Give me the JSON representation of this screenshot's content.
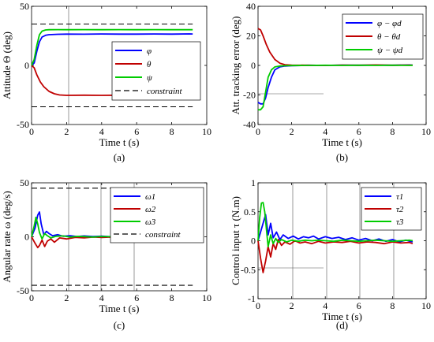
{
  "figure": {
    "panels": [
      {
        "caption": "(a)",
        "ylabel": "Attitude Θ (deg)",
        "xlabel": "Time t (s)"
      },
      {
        "caption": "(b)",
        "ylabel": "Att. tracking error (deg)",
        "xlabel": "Time t (s)"
      },
      {
        "caption": "(c)",
        "ylabel": "Angular rate ω (deg/s)",
        "xlabel": "Time t (s)"
      },
      {
        "caption": "(d)",
        "ylabel": "Control input τ (N.m)",
        "xlabel": "Time t (s)"
      }
    ]
  },
  "chart_data": [
    {
      "type": "line",
      "caption": "(a)",
      "xlabel": "Time t (s)",
      "ylabel": "Attitude Θ (deg)",
      "xlim": [
        0,
        10
      ],
      "ylim": [
        -50,
        50
      ],
      "xticks": [
        "0",
        "2",
        "4",
        "6",
        "8",
        "10"
      ],
      "yticks": [
        "-50",
        "0",
        "50"
      ],
      "legend_position": "center-right",
      "series": [
        {
          "name": "φ",
          "color": "#0000ff",
          "x": [
            0,
            0.15,
            0.3,
            0.45,
            0.6,
            0.8,
            1.0,
            1.5,
            2,
            3,
            4,
            5,
            6,
            7,
            8,
            9,
            9.2
          ],
          "y": [
            0,
            2,
            12,
            20,
            24,
            25.5,
            26,
            26.3,
            26.5,
            26.4,
            26.6,
            26.5,
            26.5,
            26.6,
            26.5,
            26.7,
            26.6
          ]
        },
        {
          "name": "θ",
          "color": "#c00000",
          "x": [
            0,
            0.15,
            0.3,
            0.5,
            0.7,
            1.0,
            1.3,
            1.6,
            2,
            3,
            4,
            5,
            6,
            7,
            8,
            9,
            9.2
          ],
          "y": [
            0,
            -2,
            -8,
            -14,
            -18,
            -22,
            -24,
            -25,
            -25.3,
            -25.2,
            -25.3,
            -25.2,
            -25.1,
            -25.2,
            -25.0,
            -25.1,
            -24.8
          ]
        },
        {
          "name": "ψ",
          "color": "#00cc00",
          "x": [
            0,
            0.15,
            0.3,
            0.45,
            0.6,
            0.8,
            1.0,
            1.5,
            2,
            3,
            4,
            5,
            6,
            7,
            8,
            9,
            9.2
          ],
          "y": [
            0,
            5,
            17,
            26,
            29,
            30,
            30.2,
            30.3,
            30.2,
            30.3,
            30.2,
            30.3,
            30.2,
            30.3,
            30.2,
            30.3,
            30.2
          ]
        },
        {
          "name": "constraint",
          "color": "#000000",
          "dash": true,
          "x": [
            0,
            9.2
          ],
          "y": [
            35,
            35
          ]
        },
        {
          "name": "",
          "color": "#000000",
          "dash": true,
          "x": [
            0,
            9.2
          ],
          "y": [
            -35,
            -35
          ]
        }
      ]
    },
    {
      "type": "line",
      "caption": "(b)",
      "xlabel": "Time t (s)",
      "ylabel": "Att. tracking error (deg)",
      "xlim": [
        0,
        10
      ],
      "ylim": [
        -40,
        40
      ],
      "xticks": [
        "0",
        "2",
        "4",
        "6",
        "8",
        "10"
      ],
      "yticks": [
        "-40",
        "-20",
        "0",
        "20",
        "40"
      ],
      "legend_position": "top-right",
      "series": [
        {
          "name": "φ − φd",
          "color": "#0000ff",
          "x": [
            0,
            0.15,
            0.3,
            0.45,
            0.6,
            0.8,
            1.0,
            1.3,
            1.6,
            2,
            3,
            4,
            5,
            6,
            7,
            8,
            9,
            9.2
          ],
          "y": [
            -25,
            -26,
            -26,
            -22,
            -15,
            -8,
            -3,
            -1,
            -0.4,
            -0.2,
            0.1,
            0,
            0.2,
            0.1,
            0.2,
            0.1,
            0.3,
            0.2
          ]
        },
        {
          "name": "θ − θd",
          "color": "#c00000",
          "x": [
            0,
            0.15,
            0.3,
            0.5,
            0.7,
            1.0,
            1.3,
            1.6,
            2,
            3,
            4,
            5,
            6,
            7,
            8,
            9,
            9.2
          ],
          "y": [
            25,
            24,
            20,
            14,
            9,
            4,
            1.5,
            0.5,
            0.2,
            0.1,
            0,
            0.2,
            0.1,
            0.3,
            0.1,
            0.2,
            0.1
          ]
        },
        {
          "name": "ψ − ψd",
          "color": "#00cc00",
          "x": [
            0,
            0.15,
            0.3,
            0.45,
            0.6,
            0.8,
            1.0,
            1.3,
            1.6,
            2,
            3,
            4,
            5,
            6,
            7,
            8,
            9,
            9.2
          ],
          "y": [
            -30,
            -30,
            -28,
            -18,
            -8,
            -3,
            -1,
            -0.4,
            -0.2,
            -0.1,
            0,
            0.1,
            0,
            0.1,
            0,
            0.1,
            0,
            0.1
          ]
        }
      ]
    },
    {
      "type": "line",
      "caption": "(c)",
      "xlabel": "Time t (s)",
      "ylabel": "Angular rate ω (deg/s)",
      "xlim": [
        0,
        10
      ],
      "ylim": [
        -50,
        50
      ],
      "xticks": [
        "0",
        "2",
        "4",
        "6",
        "8",
        "10"
      ],
      "yticks": [
        "-50",
        "0",
        "50"
      ],
      "legend_position": "top-right",
      "series": [
        {
          "name": "ω1",
          "color": "#0000ff",
          "x": [
            0,
            0.2,
            0.35,
            0.45,
            0.55,
            0.7,
            0.85,
            1.0,
            1.2,
            1.5,
            1.8,
            2.2,
            2.6,
            3,
            3.5,
            4,
            4.5,
            5,
            5.5,
            6,
            6.5,
            7,
            7.5,
            8,
            8.5,
            9,
            9.2
          ],
          "y": [
            0,
            8,
            20,
            23,
            12,
            2,
            5,
            3,
            1,
            2,
            0.5,
            1,
            0.3,
            0.8,
            0.2,
            0.6,
            0.1,
            0.5,
            0.2,
            0.4,
            0.1,
            0.3,
            0.2,
            0.3,
            0.1,
            0.3,
            0.2
          ]
        },
        {
          "name": "ω2",
          "color": "#c00000",
          "x": [
            0,
            0.2,
            0.35,
            0.45,
            0.6,
            0.75,
            0.9,
            1.1,
            1.3,
            1.6,
            2.0,
            2.5,
            3,
            3.5,
            4,
            4.5,
            5,
            5.5,
            6,
            6.5,
            7,
            7.5,
            8,
            8.5,
            9,
            9.2
          ],
          "y": [
            0,
            -6,
            -10,
            -8,
            -3,
            -9,
            -4,
            -2,
            -5,
            -1,
            -2,
            -0.5,
            -1,
            -0.3,
            -0.6,
            -0.2,
            -0.5,
            -0.3,
            -0.4,
            -0.2,
            -0.3,
            -0.1,
            -0.3,
            -0.2,
            -0.3,
            -0.1
          ]
        },
        {
          "name": "ω3",
          "color": "#00cc00",
          "x": [
            0,
            0.15,
            0.25,
            0.35,
            0.45,
            0.6,
            0.75,
            0.9,
            1.1,
            1.4,
            1.8,
            2.2,
            2.6,
            3,
            3.5,
            4,
            4.5,
            5,
            5.5,
            6,
            6.5,
            7,
            7.5,
            8,
            8.5,
            9,
            9.2
          ],
          "y": [
            0,
            10,
            18,
            12,
            4,
            -2,
            3,
            1,
            -1,
            0.5,
            0.8,
            -0.3,
            0.4,
            0.2,
            -0.2,
            0.3,
            0.1,
            -0.1,
            0.2,
            0.1,
            -0.1,
            0.1,
            0,
            0.1,
            0,
            0.1,
            0
          ]
        },
        {
          "name": "constraint",
          "color": "#000000",
          "dash": true,
          "x": [
            0,
            9.2
          ],
          "y": [
            45,
            45
          ]
        },
        {
          "name": "",
          "color": "#000000",
          "dash": true,
          "x": [
            0,
            9.2
          ],
          "y": [
            -45,
            -45
          ]
        }
      ]
    },
    {
      "type": "line",
      "caption": "(d)",
      "xlabel": "Time t (s)",
      "ylabel": "Control input τ (N.m)",
      "xlim": [
        0,
        10
      ],
      "ylim": [
        -1,
        1
      ],
      "xticks": [
        "0",
        "2",
        "4",
        "6",
        "8",
        "10"
      ],
      "yticks": [
        "-1",
        "-0.5",
        "0",
        "0.5",
        "1"
      ],
      "legend_position": "top-right",
      "series": [
        {
          "name": "τ1",
          "color": "#0000ff",
          "x": [
            0,
            0.15,
            0.3,
            0.45,
            0.6,
            0.75,
            0.9,
            1.1,
            1.3,
            1.5,
            1.8,
            2.1,
            2.4,
            2.7,
            3,
            3.3,
            3.6,
            4,
            4.4,
            4.8,
            5.2,
            5.6,
            6,
            6.4,
            6.8,
            7.2,
            7.6,
            8,
            8.4,
            8.8,
            9.2
          ],
          "y": [
            0,
            0.15,
            0.3,
            0.45,
            0.1,
            0.3,
            0.05,
            0.15,
            0.02,
            0.1,
            0.04,
            0.08,
            0.03,
            0.07,
            0.05,
            0.08,
            0.03,
            0.07,
            0.04,
            0.06,
            0.02,
            0.05,
            0.01,
            0.04,
            0.0,
            0.03,
            -0.01,
            0.02,
            -0.02,
            0.01,
            -0.02
          ]
        },
        {
          "name": "τ2",
          "color": "#c00000",
          "x": [
            0,
            0.15,
            0.3,
            0.45,
            0.6,
            0.75,
            0.9,
            1.05,
            1.2,
            1.4,
            1.6,
            1.9,
            2.2,
            2.5,
            2.8,
            3.2,
            3.6,
            4,
            4.5,
            5,
            5.5,
            6,
            6.5,
            7,
            7.5,
            8,
            8.5,
            9,
            9.2
          ],
          "y": [
            0,
            -0.3,
            -0.55,
            -0.35,
            -0.1,
            -0.28,
            -0.05,
            -0.15,
            0.02,
            -0.08,
            -0.02,
            -0.06,
            0.0,
            -0.04,
            -0.02,
            -0.05,
            -0.01,
            -0.04,
            -0.02,
            -0.03,
            -0.01,
            -0.04,
            -0.02,
            -0.03,
            -0.05,
            -0.02,
            -0.04,
            -0.03,
            -0.05
          ]
        },
        {
          "name": "τ3",
          "color": "#00cc00",
          "x": [
            0,
            0.1,
            0.2,
            0.3,
            0.4,
            0.5,
            0.6,
            0.75,
            0.9,
            1.05,
            1.2,
            1.4,
            1.7,
            2.0,
            2.4,
            2.8,
            3.2,
            3.6,
            4,
            4.5,
            5,
            5.5,
            6,
            6.5,
            7,
            7.5,
            8,
            8.5,
            9,
            9.2
          ],
          "y": [
            0,
            0.4,
            0.65,
            0.66,
            0.5,
            0.2,
            -0.1,
            0.1,
            -0.05,
            0.04,
            -0.03,
            0.02,
            -0.02,
            0.01,
            -0.01,
            0.01,
            0,
            0.01,
            0,
            -0.01,
            0.01,
            0,
            -0.01,
            0,
            0.01,
            0,
            -0.01,
            0,
            0.01,
            0
          ]
        }
      ]
    }
  ]
}
